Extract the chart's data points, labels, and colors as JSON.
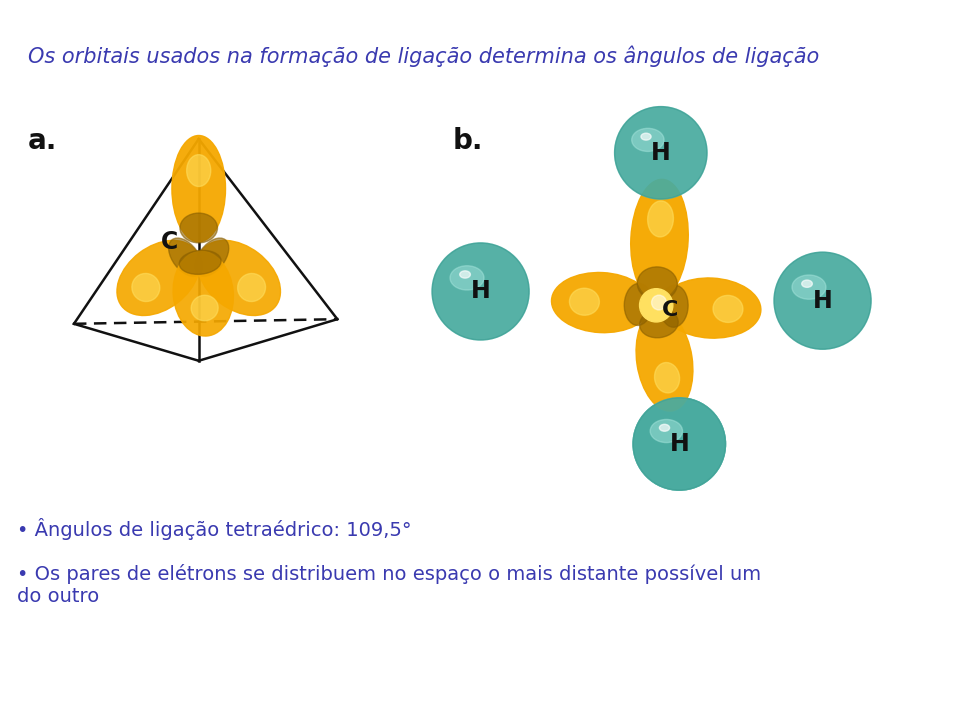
{
  "background_color": "#ffffff",
  "title": "Os orbitais usados na formação de ligação determina os ângulos de ligação",
  "title_color": "#3a3ab0",
  "title_fontsize": 15,
  "label_a": "a.",
  "label_b": "b.",
  "label_fontsize": 20,
  "label_color": "#111111",
  "bullet1": "• Ângulos de ligação tetraédrico: 109,5°",
  "bullet2": "• Os pares de elétrons se distribuem no espaço o mais distante possível um\ndo outro",
  "bullet_color": "#3a3ab0",
  "bullet_fontsize": 14,
  "orbital_orange": "#f5a800",
  "orbital_dark": "#8b6000",
  "orbital_bright": "#ffe060",
  "h_color_main": "#5abcb0",
  "h_color_dark": "#2a8a80",
  "h_color_light": "#aae8e0"
}
